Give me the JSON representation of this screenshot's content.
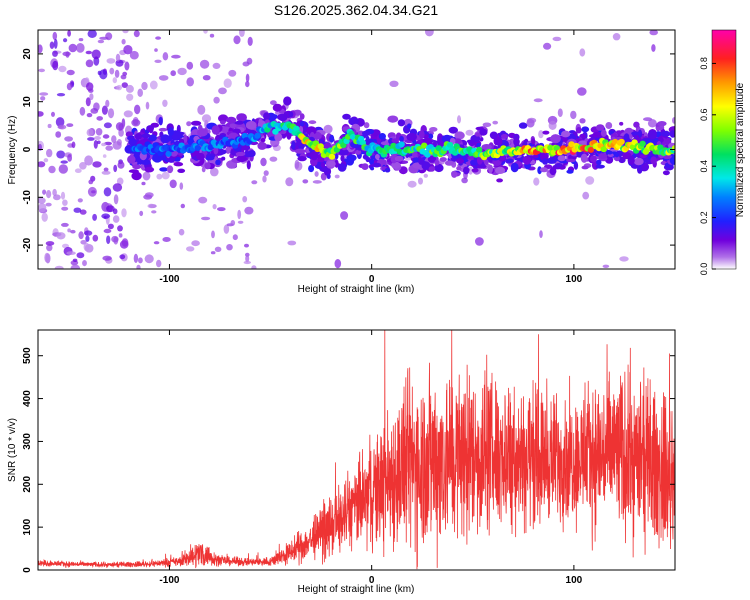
{
  "title": "S126.2025.362.04.34.G21",
  "chart_data": [
    {
      "type": "heatmap",
      "xlabel": "Height of straight line (km)",
      "ylabel": "Frequency (Hz)",
      "xlim": [
        -165,
        150
      ],
      "ylim": [
        -25,
        25
      ],
      "xticks": [
        -100,
        0,
        100
      ],
      "yticks": [
        -20,
        -10,
        0,
        10,
        20
      ],
      "colorbar": {
        "label": "Normalized spectral amplitude",
        "range": [
          0,
          0.93
        ],
        "ticks": [
          "0.0",
          "0.2",
          "0.4",
          "0.6",
          "0.8"
        ]
      },
      "ridge": {
        "x": [
          -115,
          -100,
          -80,
          -60,
          -50,
          -40,
          -30,
          -20,
          -10,
          0,
          20,
          40,
          60,
          80,
          100,
          120,
          150
        ],
        "freq": [
          0,
          0,
          1,
          2,
          5,
          5,
          1,
          -1,
          3,
          0,
          0,
          0,
          -1,
          0,
          0,
          1,
          0
        ],
        "amplitude": [
          0.3,
          0.3,
          0.3,
          0.3,
          0.45,
          0.5,
          0.75,
          0.65,
          0.55,
          0.45,
          0.5,
          0.55,
          0.6,
          0.8,
          0.85,
          0.75,
          0.6
        ]
      }
    },
    {
      "type": "line",
      "xlabel": "Height of straight line (km)",
      "ylabel": "SNR (10 * v/v)",
      "xlim": [
        -165,
        150
      ],
      "ylim": [
        0,
        560
      ],
      "xticks": [
        -100,
        0,
        100
      ],
      "yticks": [
        0,
        100,
        200,
        300,
        400,
        500
      ],
      "color": "#ee3333",
      "envelope": {
        "x": [
          -165,
          -150,
          -130,
          -110,
          -95,
          -85,
          -75,
          -60,
          -50,
          -40,
          -30,
          -20,
          -10,
          0,
          10,
          20,
          30,
          40,
          50,
          60,
          70,
          80,
          90,
          100,
          110,
          120,
          130,
          140,
          150
        ],
        "mean": [
          16,
          14,
          12,
          14,
          20,
          40,
          22,
          18,
          20,
          40,
          70,
          100,
          140,
          180,
          220,
          250,
          260,
          265,
          270,
          270,
          270,
          265,
          260,
          260,
          270,
          275,
          260,
          240,
          210
        ],
        "spread": [
          6,
          6,
          5,
          6,
          10,
          30,
          10,
          8,
          10,
          25,
          40,
          60,
          80,
          110,
          150,
          190,
          190,
          180,
          170,
          160,
          150,
          140,
          130,
          130,
          150,
          170,
          170,
          160,
          150
        ]
      }
    }
  ]
}
